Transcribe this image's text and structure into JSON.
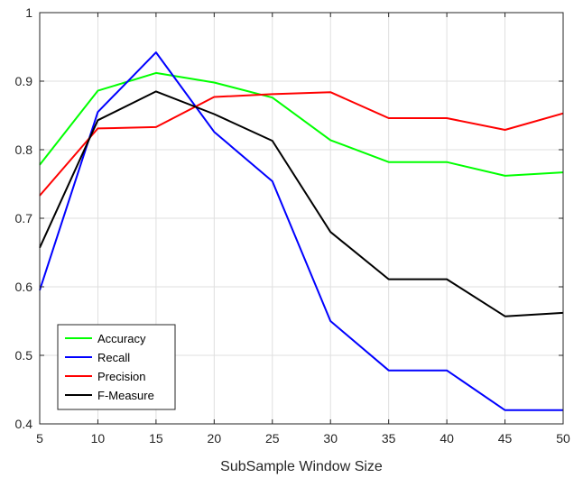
{
  "chart_data": {
    "type": "line",
    "title": "",
    "xlabel": "SubSample Window Size",
    "ylabel": "",
    "xlim": [
      5,
      50
    ],
    "ylim": [
      0.4,
      1
    ],
    "x": [
      5,
      10,
      15,
      20,
      25,
      30,
      35,
      40,
      45,
      50
    ],
    "x_ticks": [
      "5",
      "10",
      "15",
      "20",
      "25",
      "30",
      "35",
      "40",
      "45",
      "50"
    ],
    "y_ticks": [
      "0.4",
      "0.5",
      "0.6",
      "0.7",
      "0.8",
      "0.9",
      "1"
    ],
    "grid": true,
    "legend_position": "bottom-left",
    "series": [
      {
        "name": "Accuracy",
        "color": "#00ff00",
        "values": [
          0.778,
          0.886,
          0.912,
          0.898,
          0.876,
          0.814,
          0.782,
          0.782,
          0.762,
          0.767
        ]
      },
      {
        "name": "Recall",
        "color": "#0000ff",
        "values": [
          0.595,
          0.855,
          0.942,
          0.826,
          0.754,
          0.55,
          0.478,
          0.478,
          0.42,
          0.42
        ]
      },
      {
        "name": "Precision",
        "color": "#ff0000",
        "values": [
          0.733,
          0.831,
          0.833,
          0.877,
          0.881,
          0.884,
          0.846,
          0.846,
          0.829,
          0.853
        ]
      },
      {
        "name": "F-Measure",
        "color": "#000000",
        "values": [
          0.657,
          0.843,
          0.885,
          0.852,
          0.813,
          0.68,
          0.611,
          0.611,
          0.557,
          0.562
        ]
      }
    ]
  }
}
